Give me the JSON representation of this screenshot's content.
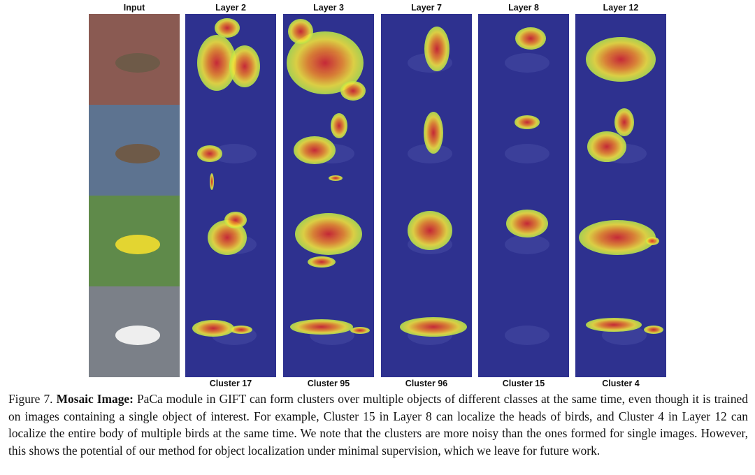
{
  "figure": {
    "columns": [
      "Input",
      "Layer 2",
      "Layer 3",
      "Layer 7",
      "Layer 8",
      "Layer 12"
    ],
    "clusters": [
      "Cluster 17",
      "Cluster 95",
      "Cluster 96",
      "Cluster 15",
      "Cluster 4"
    ],
    "caption": {
      "label": "Figure 7.",
      "bold": "Mosaic Image:",
      "text": "PaCa module in GIFT can form clusters over multiple objects of different classes at the same time, even though it is trained on images containing a single object of interest. For example, Cluster 15 in Layer 8 can localize the heads of birds, and Cluster 4 in Layer 12 can localize the entire body of multiple birds at the same time. We note that the clusters are more noisy than the ones formed for single images. However, this shows the potential of our method for object localization under minimal supervision, which we leave for future work."
    }
  }
}
